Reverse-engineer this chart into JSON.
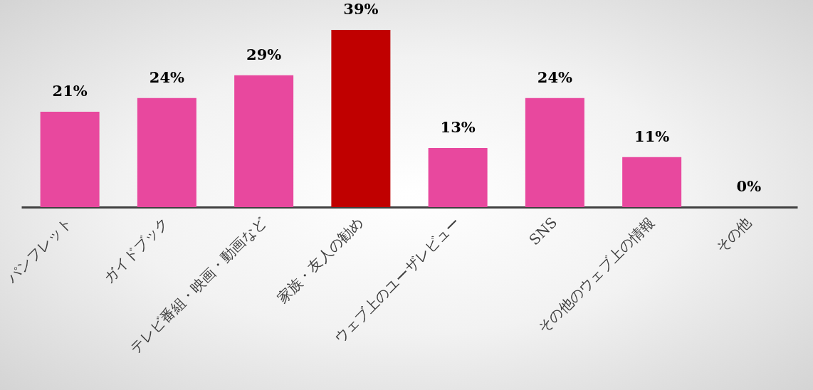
{
  "chart_data": {
    "type": "bar",
    "categories": [
      "パンフレット",
      "ガイドブック",
      "テレビ番組・映画・動画など",
      "家族・友人の勧め",
      "ウェブ上のユーザレビュー",
      "SNS",
      "その他のウェブ上の情報",
      "その他"
    ],
    "values": [
      21,
      24,
      29,
      39,
      13,
      24,
      11,
      0
    ],
    "value_labels": [
      "21%",
      "24%",
      "29%",
      "39%",
      "13%",
      "24%",
      "11%",
      "0%"
    ],
    "colors": [
      "#e8489e",
      "#e8489e",
      "#e8489e",
      "#c00000",
      "#e8489e",
      "#e8489e",
      "#e8489e",
      "#e8489e"
    ],
    "grid": false,
    "legend": false
  }
}
